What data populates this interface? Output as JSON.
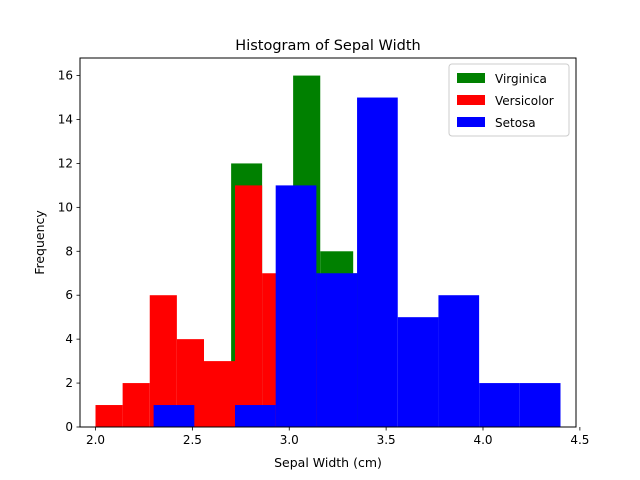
{
  "chart_data": {
    "type": "histogram",
    "title": "Histogram of Sepal Width",
    "xlabel": "Sepal Width (cm)",
    "ylabel": "Frequency",
    "xlim": [
      1.92,
      4.48
    ],
    "ylim": [
      0,
      16.8
    ],
    "xticks": [
      2.0,
      2.5,
      3.0,
      3.5,
      4.0,
      4.5
    ],
    "yticks": [
      0,
      2,
      4,
      6,
      8,
      10,
      12,
      14,
      16
    ],
    "grid": false,
    "legend_position": "top-right",
    "series": [
      {
        "name": "Virginica",
        "color": "#008000",
        "bins": [
          {
            "x0": 2.7,
            "x1": 2.86,
            "count": 12
          },
          {
            "x0": 3.02,
            "x1": 3.16,
            "count": 16
          },
          {
            "x0": 3.16,
            "x1": 3.33,
            "count": 8
          },
          {
            "x0": 3.33,
            "x1": 3.49,
            "count": 7
          }
        ]
      },
      {
        "name": "Versicolor",
        "color": "#ff0000",
        "bins": [
          {
            "x0": 2.0,
            "x1": 2.14,
            "count": 1
          },
          {
            "x0": 2.14,
            "x1": 2.28,
            "count": 2
          },
          {
            "x0": 2.28,
            "x1": 2.42,
            "count": 6
          },
          {
            "x0": 2.42,
            "x1": 2.56,
            "count": 4
          },
          {
            "x0": 2.56,
            "x1": 2.72,
            "count": 3
          },
          {
            "x0": 2.72,
            "x1": 2.86,
            "count": 11
          },
          {
            "x0": 2.86,
            "x1": 3.0,
            "count": 7
          },
          {
            "x0": 3.0,
            "x1": 3.14,
            "count": 4
          },
          {
            "x0": 3.14,
            "x1": 3.28,
            "count": 3
          }
        ]
      },
      {
        "name": "Setosa",
        "color": "#0000ff",
        "bins": [
          {
            "x0": 2.3,
            "x1": 2.51,
            "count": 1
          },
          {
            "x0": 2.51,
            "x1": 2.72,
            "count": 0
          },
          {
            "x0": 2.72,
            "x1": 2.93,
            "count": 1
          },
          {
            "x0": 2.93,
            "x1": 3.14,
            "count": 11
          },
          {
            "x0": 3.14,
            "x1": 3.35,
            "count": 7
          },
          {
            "x0": 3.35,
            "x1": 3.56,
            "count": 15
          },
          {
            "x0": 3.56,
            "x1": 3.77,
            "count": 5
          },
          {
            "x0": 3.77,
            "x1": 3.98,
            "count": 6
          },
          {
            "x0": 3.98,
            "x1": 4.19,
            "count": 2
          },
          {
            "x0": 4.19,
            "x1": 4.4,
            "count": 2
          }
        ]
      }
    ]
  }
}
